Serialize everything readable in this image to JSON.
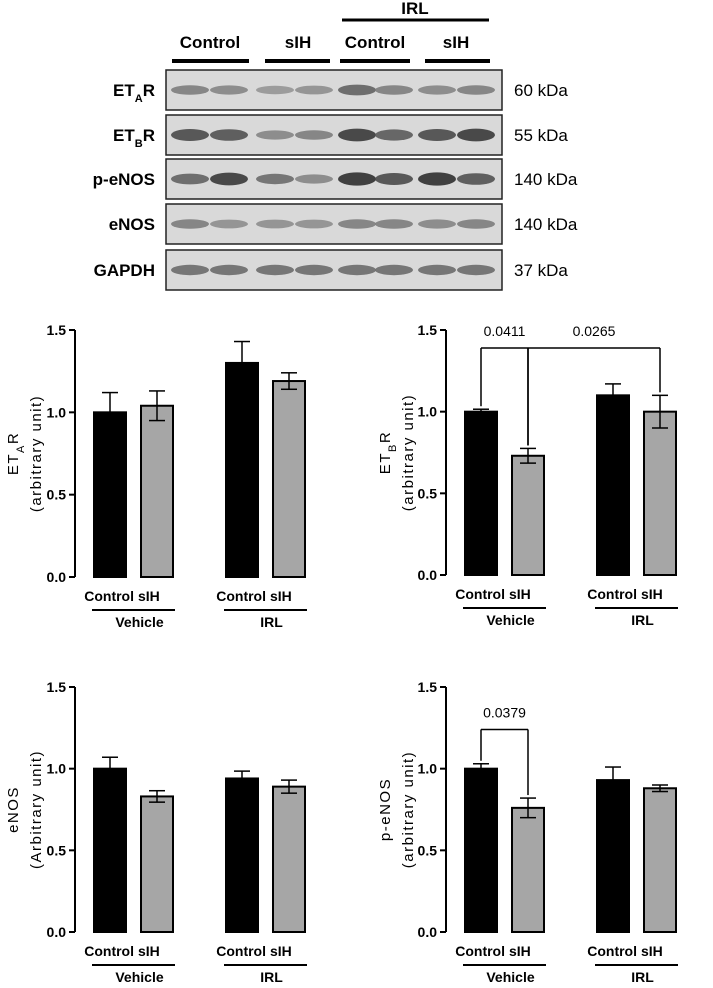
{
  "blot": {
    "header": {
      "group_labels": [
        "Control",
        "sIH",
        "Control",
        "sIH"
      ],
      "treatment_label": "IRL"
    },
    "rows": [
      {
        "label": "ET",
        "label_sub": "A",
        "label_tail": "R",
        "kda": "60 kDa",
        "intensities": [
          0.45,
          0.4,
          0.3,
          0.35,
          0.6,
          0.45,
          0.4,
          0.45
        ]
      },
      {
        "label": "ET",
        "label_sub": "B",
        "label_tail": "R",
        "kda": "55 kDa",
        "intensities": [
          0.75,
          0.7,
          0.4,
          0.45,
          0.85,
          0.65,
          0.75,
          0.85
        ]
      },
      {
        "label": "p-eNOS",
        "label_sub": "",
        "label_tail": "",
        "kda": "140 kDa",
        "intensities": [
          0.6,
          0.85,
          0.55,
          0.4,
          0.9,
          0.75,
          0.9,
          0.7
        ]
      },
      {
        "label": "eNOS",
        "label_sub": "",
        "label_tail": "",
        "kda": "140 kDa",
        "intensities": [
          0.45,
          0.35,
          0.35,
          0.35,
          0.45,
          0.45,
          0.4,
          0.45
        ]
      },
      {
        "label": "GAPDH",
        "label_sub": "",
        "label_tail": "",
        "kda": "37 kDa",
        "intensities": [
          0.55,
          0.55,
          0.55,
          0.55,
          0.55,
          0.55,
          0.55,
          0.55
        ]
      }
    ]
  },
  "chart_data": [
    {
      "type": "bar",
      "categories": [
        "Control",
        "sIH",
        "Control",
        "sIH"
      ],
      "groups": [
        "Vehicle",
        "IRL"
      ],
      "values": [
        1.0,
        1.04,
        1.3,
        1.19
      ],
      "errors": [
        0.12,
        0.09,
        0.13,
        0.05
      ],
      "bar_colors": [
        "#000000",
        "#a6a6a6",
        "#000000",
        "#a6a6a6"
      ],
      "ylabel_main": "ET",
      "ylabel_sub": "A",
      "ylabel_tail": "R",
      "ylabel_line2": "(arbitrary unit)",
      "ylim": [
        0,
        1.5
      ],
      "yticks": [
        "0.0",
        "0.5",
        "1.0",
        "1.5"
      ],
      "annotations": []
    },
    {
      "type": "bar",
      "categories": [
        "Control",
        "sIH",
        "Control",
        "sIH"
      ],
      "groups": [
        "Vehicle",
        "IRL"
      ],
      "values": [
        1.0,
        0.73,
        1.1,
        1.0
      ],
      "errors": [
        0.015,
        0.045,
        0.07,
        0.1
      ],
      "bar_colors": [
        "#000000",
        "#a6a6a6",
        "#000000",
        "#a6a6a6"
      ],
      "ylabel_main": "ET",
      "ylabel_sub": "B",
      "ylabel_tail": "R",
      "ylabel_line2": "(arbitrary unit)",
      "ylim": [
        0,
        1.5
      ],
      "yticks": [
        "0.0",
        "0.5",
        "1.0",
        "1.5"
      ],
      "annotations": [
        {
          "from": 0,
          "to": 1,
          "label": "0.0411",
          "level": 1.39
        },
        {
          "from": 1,
          "to": 3,
          "label": "0.0265",
          "level": 1.39
        }
      ]
    },
    {
      "type": "bar",
      "categories": [
        "Control",
        "sIH",
        "Control",
        "sIH"
      ],
      "groups": [
        "Vehicle",
        "IRL"
      ],
      "values": [
        1.0,
        0.83,
        0.94,
        0.89
      ],
      "errors": [
        0.07,
        0.035,
        0.045,
        0.04
      ],
      "bar_colors": [
        "#000000",
        "#a6a6a6",
        "#000000",
        "#a6a6a6"
      ],
      "ylabel_main": "eNOS",
      "ylabel_sub": "",
      "ylabel_tail": "",
      "ylabel_line2": "(Arbitrary unit)",
      "ylim": [
        0,
        1.5
      ],
      "yticks": [
        "0.0",
        "0.5",
        "1.0",
        "1.5"
      ],
      "annotations": []
    },
    {
      "type": "bar",
      "categories": [
        "Control",
        "sIH",
        "Control",
        "sIH"
      ],
      "groups": [
        "Vehicle",
        "IRL"
      ],
      "values": [
        1.0,
        0.76,
        0.93,
        0.88
      ],
      "errors": [
        0.03,
        0.06,
        0.08,
        0.02
      ],
      "bar_colors": [
        "#000000",
        "#a6a6a6",
        "#000000",
        "#a6a6a6"
      ],
      "ylabel_main": "p-eNOS",
      "ylabel_sub": "",
      "ylabel_tail": "",
      "ylabel_line2": "(arbitrary unit)",
      "ylim": [
        0,
        1.5
      ],
      "yticks": [
        "0.0",
        "0.5",
        "1.0",
        "1.5"
      ],
      "annotations": [
        {
          "from": 0,
          "to": 1,
          "label": "0.0379",
          "level": 1.24
        }
      ]
    }
  ]
}
